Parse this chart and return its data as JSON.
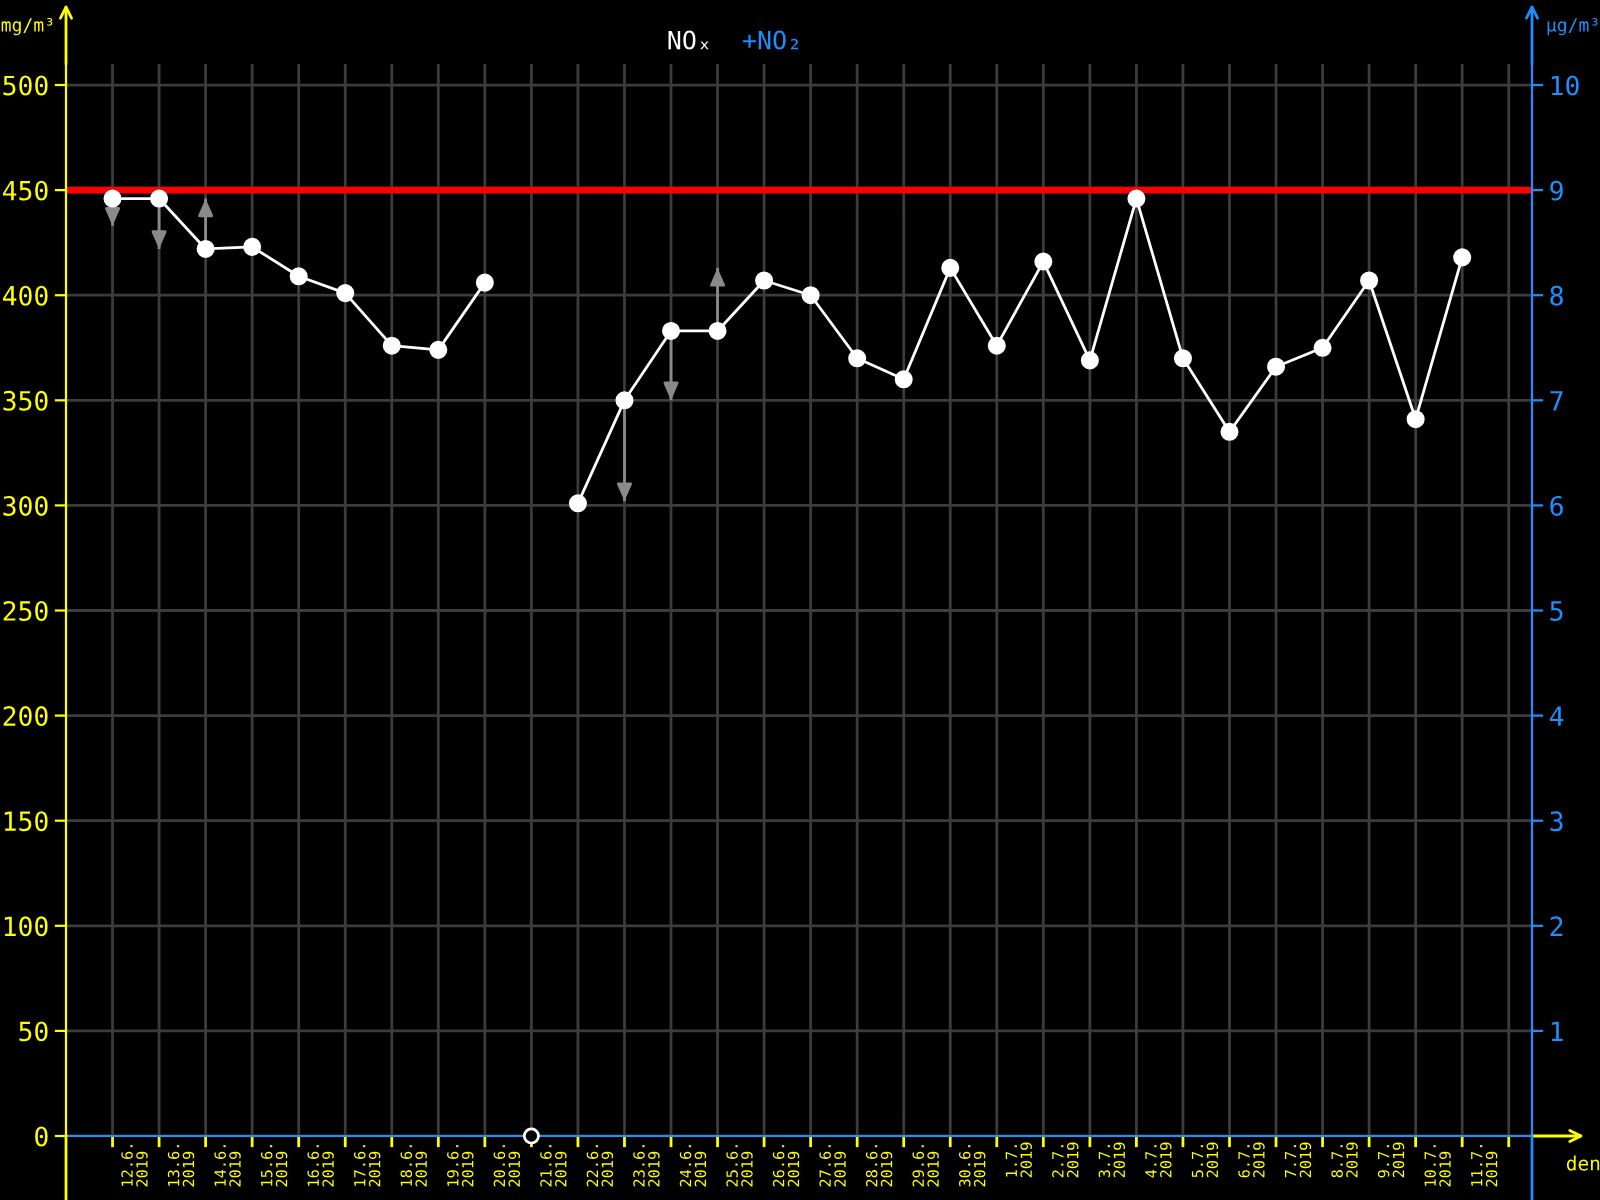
{
  "chart_data": {
    "type": "line",
    "xlabel": "den",
    "ylabel": "mg/m³",
    "y2label": "µg/m³",
    "x": [
      "2019-06-12",
      "2019-06-13",
      "2019-06-14",
      "2019-06-15",
      "2019-06-16",
      "2019-06-17",
      "2019-06-18",
      "2019-06-19",
      "2019-06-20",
      "2019-06-21",
      "2019-06-22",
      "2019-06-23",
      "2019-06-24",
      "2019-06-25",
      "2019-06-26",
      "2019-06-27",
      "2019-06-28",
      "2019-06-29",
      "2019-06-30",
      "2019-07-01",
      "2019-07-02",
      "2019-07-03",
      "2019-07-04",
      "2019-07-05",
      "2019-07-06",
      "2019-07-07",
      "2019-07-08",
      "2019-07-09",
      "2019-07-10",
      "2019-07-11"
    ],
    "series": [
      {
        "name": "NOₓ",
        "color": "#ffffff",
        "values": [
          446,
          446,
          422,
          423,
          409,
          401,
          376,
          374,
          406,
          null,
          301,
          350,
          383,
          383,
          407,
          400,
          370,
          360,
          413,
          376,
          416,
          369,
          446,
          370,
          335,
          366,
          375,
          407,
          341,
          418
        ],
        "errors": [
          [
            433,
            446
          ],
          [
            422,
            446
          ],
          [
            422,
            446
          ],
          null,
          null,
          null,
          null,
          null,
          null,
          null,
          null,
          [
            302,
            350
          ],
          [
            350,
            383
          ],
          [
            383,
            413
          ],
          null,
          null,
          null,
          null,
          null,
          null,
          null,
          null,
          null,
          null,
          null,
          null,
          null,
          null,
          null,
          null
        ]
      },
      {
        "name": "+NO₂",
        "color": "#1e8fff",
        "values": [
          null,
          null,
          null,
          null,
          null,
          null,
          null,
          null,
          null,
          null,
          null,
          null,
          null,
          null,
          null,
          null,
          null,
          null,
          null,
          null,
          null,
          null,
          null,
          null,
          null,
          null,
          null,
          null,
          null,
          null
        ]
      },
      {
        "color": "#ffffff",
        "type": "scatter",
        "x": [
          "2019-06-21"
        ],
        "values": [
          0
        ]
      }
    ],
    "xlim": [
      "2019-06-11",
      "2019-07-12T12:00"
    ],
    "xticks": [
      {
        "value": "2019-06-12",
        "label": null
      },
      {
        "value": "2019-06-12T12:00",
        "label": "12.6.\n2019"
      },
      {
        "value": "2019-06-13",
        "label": null
      },
      {
        "value": "2019-06-13T12:00",
        "label": "13.6.\n2019"
      },
      {
        "value": "2019-06-14",
        "label": null
      },
      {
        "value": "2019-06-14T12:00",
        "label": "14.6.\n2019"
      },
      {
        "value": "2019-06-15",
        "label": null
      },
      {
        "value": "2019-06-15T12:00",
        "label": "15.6.\n2019"
      },
      {
        "value": "2019-06-16",
        "label": null
      },
      {
        "value": "2019-06-16T12:00",
        "label": "16.6.\n2019"
      },
      {
        "value": "2019-06-17",
        "label": null
      },
      {
        "value": "2019-06-17T12:00",
        "label": "17.6.\n2019"
      },
      {
        "value": "2019-06-18",
        "label": null
      },
      {
        "value": "2019-06-18T12:00",
        "label": "18.6.\n2019"
      },
      {
        "value": "2019-06-19",
        "label": null
      },
      {
        "value": "2019-06-19T12:00",
        "label": "19.6.\n2019"
      },
      {
        "value": "2019-06-20",
        "label": null
      },
      {
        "value": "2019-06-20T12:00",
        "label": "20.6.\n2019"
      },
      {
        "value": "2019-06-21",
        "label": null
      },
      {
        "value": "2019-06-21T12:00",
        "label": "21.6.\n2019"
      },
      {
        "value": "2019-06-22",
        "label": null
      },
      {
        "value": "2019-06-22T12:00",
        "label": "22.6.\n2019"
      },
      {
        "value": "2019-06-23",
        "label": null
      },
      {
        "value": "2019-06-23T12:00",
        "label": "23.6.\n2019"
      },
      {
        "value": "2019-06-24",
        "label": null
      },
      {
        "value": "2019-06-24T12:00",
        "label": "24.6.\n2019"
      },
      {
        "value": "2019-06-25",
        "label": null
      },
      {
        "value": "2019-06-25T12:00",
        "label": "25.6.\n2019"
      },
      {
        "value": "2019-06-26",
        "label": null
      },
      {
        "value": "2019-06-26T12:00",
        "label": "26.6.\n2019"
      },
      {
        "value": "2019-06-27",
        "label": null
      },
      {
        "value": "2019-06-27T12:00",
        "label": "27.6.\n2019"
      },
      {
        "value": "2019-06-28",
        "label": null
      },
      {
        "value": "2019-06-28T12:00",
        "label": "28.6.\n2019"
      },
      {
        "value": "2019-06-29",
        "label": null
      },
      {
        "value": "2019-06-29T12:00",
        "label": "29.6.\n2019"
      },
      {
        "value": "2019-06-30",
        "label": null
      },
      {
        "value": "2019-06-30T12:00",
        "label": "30.6.\n2019"
      },
      {
        "value": "2019-07-01",
        "label": null
      },
      {
        "value": "2019-07-01T12:00",
        "label": "1.7.\n2019"
      },
      {
        "value": "2019-07-02",
        "label": null
      },
      {
        "value": "2019-07-02T12:00",
        "label": "2.7.\n2019"
      },
      {
        "value": "2019-07-03",
        "label": null
      },
      {
        "value": "2019-07-03T12:00",
        "label": "3.7.\n2019"
      },
      {
        "value": "2019-07-04",
        "label": null
      },
      {
        "value": "2019-07-04T12:00",
        "label": "4.7.\n2019"
      },
      {
        "value": "2019-07-05",
        "label": null
      },
      {
        "value": "2019-07-05T12:00",
        "label": "5.7.\n2019"
      },
      {
        "value": "2019-07-06",
        "label": null
      },
      {
        "value": "2019-07-06T12:00",
        "label": "6.7.\n2019"
      },
      {
        "value": "2019-07-07",
        "label": null
      },
      {
        "value": "2019-07-07T12:00",
        "label": "7.7.\n2019"
      },
      {
        "value": "2019-07-08",
        "label": null
      },
      {
        "value": "2019-07-08T12:00",
        "label": "8.7.\n2019"
      },
      {
        "value": "2019-07-09",
        "label": null
      },
      {
        "value": "2019-07-09T12:00",
        "label": "9.7.\n2019"
      },
      {
        "value": "2019-07-10",
        "label": null
      },
      {
        "value": "2019-07-10T12:00",
        "label": "10.7.\n2019"
      },
      {
        "value": "2019-07-11",
        "label": null
      },
      {
        "value": "2019-07-11T12:00",
        "label": "11.7.\n2019"
      },
      {
        "value": "2019-07-12",
        "label": null
      }
    ],
    "ylim": [
      0,
      510
    ],
    "yticks": [
      0,
      50,
      100,
      150,
      200,
      250,
      300,
      350,
      400,
      450,
      500
    ],
    "y2lim": [
      0,
      10.2
    ],
    "y2ticks": [
      1,
      2,
      3,
      4,
      5,
      6,
      7,
      8,
      9,
      10
    ],
    "ref_lines": [
      {
        "axis": "y",
        "value": 450,
        "color": "#ff0000"
      }
    ],
    "grid": true,
    "legend": "top",
    "marker": "circle",
    "line_style": "solid"
  }
}
